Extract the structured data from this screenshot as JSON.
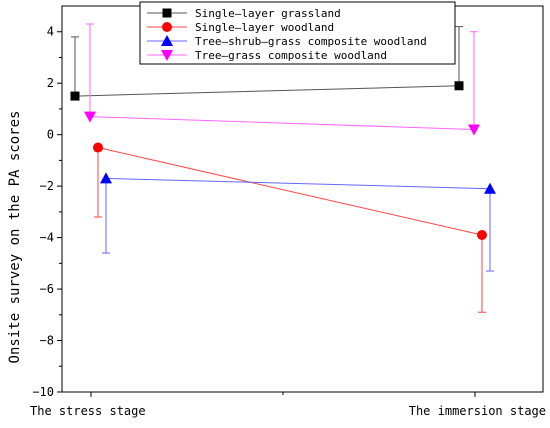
{
  "chart_data": {
    "type": "line",
    "title": "",
    "xlabel": "",
    "ylabel": "Onsite survey on the PA scores",
    "categories": [
      "The stress stage",
      "The immersion stage"
    ],
    "ylim": [
      -10,
      5
    ],
    "yticks": [
      -10,
      -8,
      -6,
      -4,
      -2,
      0,
      2,
      4
    ],
    "grid": false,
    "legend_position": "top-center",
    "series": [
      {
        "name": "Single—layer grassland",
        "marker": "square",
        "color": "#000000",
        "line_color": "#555555",
        "values": [
          1.5,
          1.9
        ],
        "error_upper": [
          2.3,
          2.3
        ],
        "error_lower": [
          0,
          0
        ]
      },
      {
        "name": "Single—layer woodland",
        "marker": "circle",
        "color": "#ff0000",
        "line_color": "#ff4444",
        "values": [
          -0.5,
          -3.9
        ],
        "error_upper": [
          0,
          0
        ],
        "error_lower": [
          2.7,
          3.0
        ]
      },
      {
        "name": "Tree—shrub—grass composite woodland",
        "marker": "triangle-up",
        "color": "#0000ff",
        "line_color": "#6666ff",
        "values": [
          -1.7,
          -2.1
        ],
        "error_upper": [
          0,
          0
        ],
        "error_lower": [
          2.9,
          3.2
        ]
      },
      {
        "name": "Tree—grass composite woodland",
        "marker": "triangle-down",
        "color": "#ff00ff",
        "line_color": "#ff66ff",
        "values": [
          0.7,
          0.2
        ],
        "error_upper": [
          3.6,
          3.8
        ],
        "error_lower": [
          0,
          0
        ]
      }
    ]
  }
}
